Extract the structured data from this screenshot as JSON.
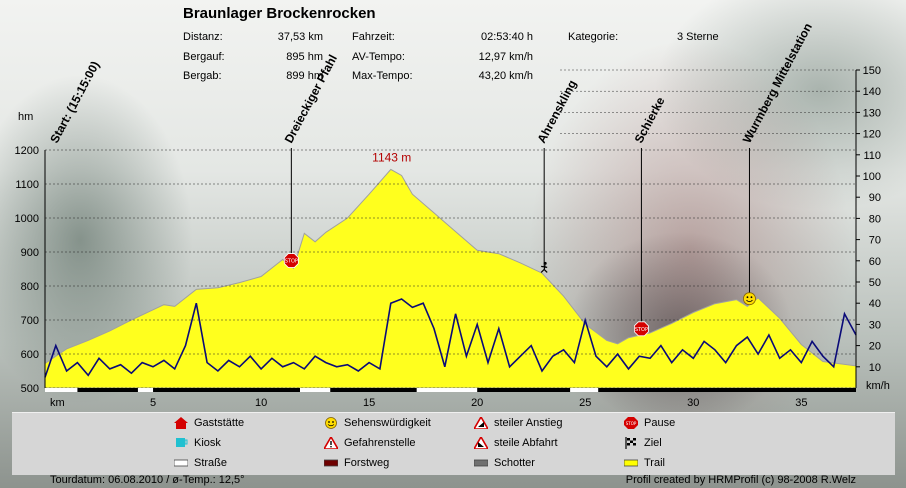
{
  "title": "Braunlager Brockenrocken",
  "stats": [
    {
      "label": "Distanz:",
      "value": "37,53 km"
    },
    {
      "label": "Bergauf:",
      "value": "895 hm"
    },
    {
      "label": "Bergab:",
      "value": "899 hm"
    },
    {
      "label": "Fahrzeit:",
      "value": "02:53:40 h"
    },
    {
      "label": "AV-Tempo:",
      "value": "12,97 km/h"
    },
    {
      "label": "Max-Tempo:",
      "value": "43,20 km/h"
    },
    {
      "label": "Kategorie:",
      "value": "3 Sterne"
    }
  ],
  "chart_data": {
    "type": "area",
    "xlabel": "km",
    "ylabel_left": "hm",
    "ylabel_right": "km/h",
    "xlim": [
      0,
      37.53
    ],
    "ylim_left": [
      500,
      1200
    ],
    "ylim_right": [
      0,
      150
    ],
    "x_ticks": [
      "5",
      "10",
      "15",
      "20",
      "25",
      "30",
      "35"
    ],
    "y_ticks_left": [
      "500",
      "600",
      "700",
      "800",
      "900",
      "1000",
      "1100",
      "1200"
    ],
    "y_ticks_right": [
      "10",
      "20",
      "30",
      "40",
      "50",
      "60",
      "70",
      "80",
      "90",
      "100",
      "110",
      "120",
      "130",
      "140",
      "150"
    ],
    "grid": true,
    "colors": {
      "elevation_fill": "#ffff1e",
      "elevation_line": "#a0a0a0",
      "speed_line": "#0a0a78",
      "peak_label": "#b40000"
    },
    "peak_label": "1143 m",
    "elevation": {
      "x": [
        0,
        1,
        2,
        3,
        4,
        5,
        5.5,
        6,
        7,
        8,
        9,
        10,
        11,
        11.5,
        12,
        12.5,
        13,
        14,
        15,
        16,
        16.5,
        17,
        18,
        19,
        20,
        21,
        22,
        23,
        24,
        25,
        26,
        26.5,
        27,
        28,
        29,
        30,
        31,
        32,
        32.5,
        33,
        34,
        35,
        36,
        37.53
      ],
      "y": [
        572,
        615,
        640,
        668,
        700,
        730,
        745,
        740,
        790,
        795,
        810,
        828,
        878,
        852,
        955,
        930,
        958,
        1000,
        1070,
        1143,
        1125,
        1070,
        1015,
        960,
        905,
        895,
        868,
        838,
        770,
        688,
        640,
        630,
        648,
        662,
        690,
        722,
        748,
        760,
        740,
        765,
        705,
        628,
        578,
        565
      ]
    },
    "speed": {
      "x": [
        0,
        0.5,
        1,
        1.5,
        2,
        2.5,
        3,
        3.5,
        4,
        4.5,
        5,
        5.5,
        6,
        6.5,
        7,
        7.5,
        8,
        8.5,
        9,
        9.5,
        10,
        10.5,
        11,
        11.5,
        12,
        12.5,
        13,
        13.5,
        14,
        14.5,
        15,
        15.5,
        16,
        16.5,
        17,
        17.5,
        18,
        18.5,
        19,
        19.5,
        20,
        20.5,
        21,
        21.5,
        22,
        22.5,
        23,
        23.5,
        24,
        24.5,
        25,
        25.5,
        26,
        26.5,
        27,
        27.5,
        28,
        28.5,
        29,
        29.5,
        30,
        30.5,
        31,
        31.5,
        32,
        32.5,
        33,
        33.5,
        34,
        34.5,
        35,
        35.5,
        36,
        36.5,
        37,
        37.53
      ],
      "y": [
        5,
        20,
        8,
        12,
        6,
        14,
        9,
        11,
        7,
        12,
        10,
        13,
        9,
        20,
        40,
        12,
        8,
        13,
        10,
        15,
        9,
        14,
        10,
        12,
        9,
        15,
        12,
        10,
        11,
        8,
        12,
        9,
        40,
        42,
        38,
        40,
        28,
        10,
        35,
        15,
        30,
        12,
        28,
        10,
        15,
        20,
        8,
        15,
        18,
        12,
        32,
        15,
        10,
        16,
        9,
        15,
        14,
        20,
        12,
        18,
        14,
        22,
        18,
        12,
        20,
        24,
        16,
        25,
        14,
        18,
        12,
        22,
        15,
        10,
        35,
        25
      ]
    },
    "waypoints": [
      {
        "label": "Start: (15:15:00)",
        "km": 0,
        "icon": "none"
      },
      {
        "label": "Dreieckiger Pfahl",
        "km": 11.4,
        "icon": "pause"
      },
      {
        "label": "Ahrenskling",
        "km": 23.1,
        "icon": "steep"
      },
      {
        "label": "Schierke",
        "km": 27.6,
        "icon": "pause"
      },
      {
        "label": "Wurmberg Mittelstation",
        "km": 32.6,
        "icon": "sight"
      }
    ]
  },
  "legend": {
    "items": [
      {
        "label": "Gaststätte",
        "icon": "house-icon"
      },
      {
        "label": "Sehenswürdigkeit",
        "icon": "smiley-icon"
      },
      {
        "label": "steiler Anstieg",
        "icon": "warning-up-icon"
      },
      {
        "label": "Pause",
        "icon": "stop-icon"
      },
      {
        "label": "Kiosk",
        "icon": "kiosk-icon"
      },
      {
        "label": "Gefahrenstelle",
        "icon": "warning-icon"
      },
      {
        "label": "steile Abfahrt",
        "icon": "warning-down-icon"
      },
      {
        "label": "Ziel",
        "icon": "finish-flag-icon"
      },
      {
        "label": "Straße",
        "icon": "road-swatch",
        "color": "#ffffff"
      },
      {
        "label": "Forstweg",
        "icon": "forest-road-swatch",
        "color": "#6e0000"
      },
      {
        "label": "Schotter",
        "icon": "gravel-swatch",
        "color": "#707070"
      },
      {
        "label": "Trail",
        "icon": "trail-swatch",
        "color": "#ffff00"
      }
    ]
  },
  "footer": {
    "left": "Tourdatum: 06.08.2010  /  ø-Temp.: 12,5°",
    "right": "Profil created by HRMProfil (c) 98-2008 R.Welz"
  }
}
